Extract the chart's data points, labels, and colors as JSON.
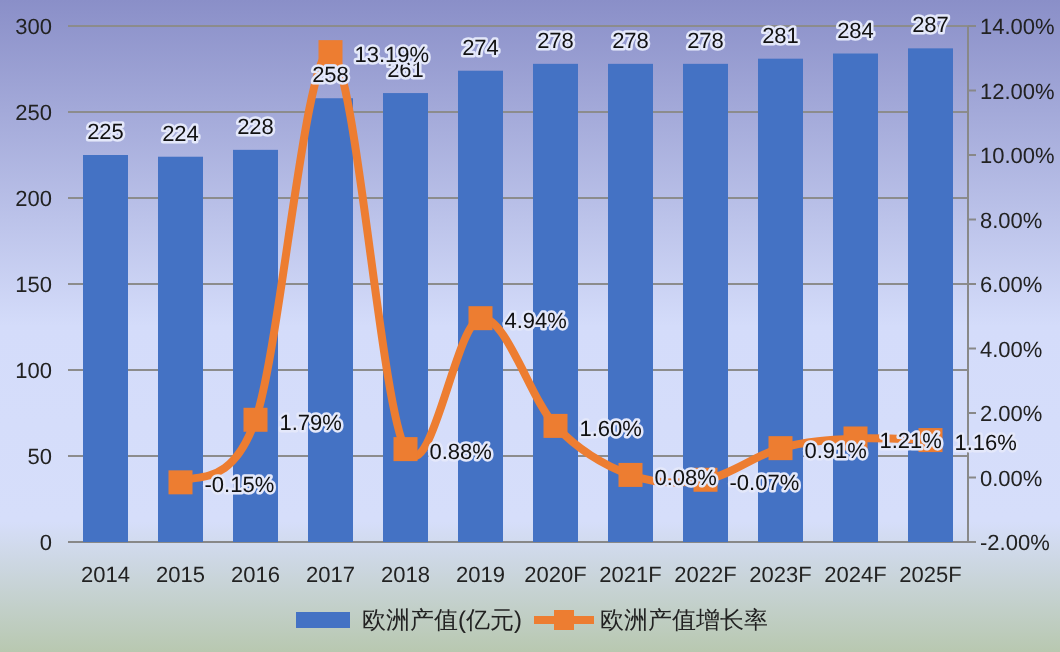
{
  "chart_data": {
    "type": "bar",
    "categories": [
      "2014",
      "2015",
      "2016",
      "2017",
      "2018",
      "2019",
      "2020F",
      "2021F",
      "2022F",
      "2023F",
      "2024F",
      "2025F"
    ],
    "series": [
      {
        "name": "欧洲产值(亿元)",
        "color": "#4472c4",
        "values": [
          225,
          224,
          228,
          258,
          261,
          274,
          278,
          278,
          278,
          281,
          284,
          287
        ],
        "value_labels": [
          "225",
          "224",
          "228",
          "258",
          "261",
          "274",
          "278",
          "278",
          "278",
          "281",
          "284",
          "287"
        ]
      },
      {
        "name": "欧洲产值增长率",
        "type": "line",
        "axis": "y2",
        "color": "#ed7d31",
        "marker": "square",
        "values": [
          null,
          -0.15,
          1.79,
          13.19,
          0.88,
          4.94,
          1.6,
          0.08,
          -0.07,
          0.91,
          1.21,
          1.16
        ],
        "value_labels": [
          null,
          "-0.15%",
          "1.79%",
          "13.19%",
          "0.88%",
          "4.94%",
          "1.60%",
          "0.08%",
          "-0.07%",
          "0.91%",
          "1.21%",
          "1.16%"
        ]
      }
    ],
    "ylim": [
      0,
      300
    ],
    "yticks": [
      0,
      50,
      100,
      150,
      200,
      250,
      300
    ],
    "y2lim": [
      -2,
      14
    ],
    "y2ticks": [
      {
        "value": -2,
        "label": "-2.00%"
      },
      {
        "value": 0,
        "label": "0.00%"
      },
      {
        "value": 2,
        "label": "2.00%"
      },
      {
        "value": 4,
        "label": "4.00%"
      },
      {
        "value": 6,
        "label": "6.00%"
      },
      {
        "value": 8,
        "label": "8.00%"
      },
      {
        "value": 10,
        "label": "10.00%"
      },
      {
        "value": 12,
        "label": "12.00%"
      },
      {
        "value": 14,
        "label": "14.00%"
      }
    ],
    "grid": "y",
    "legend": "bottom"
  }
}
